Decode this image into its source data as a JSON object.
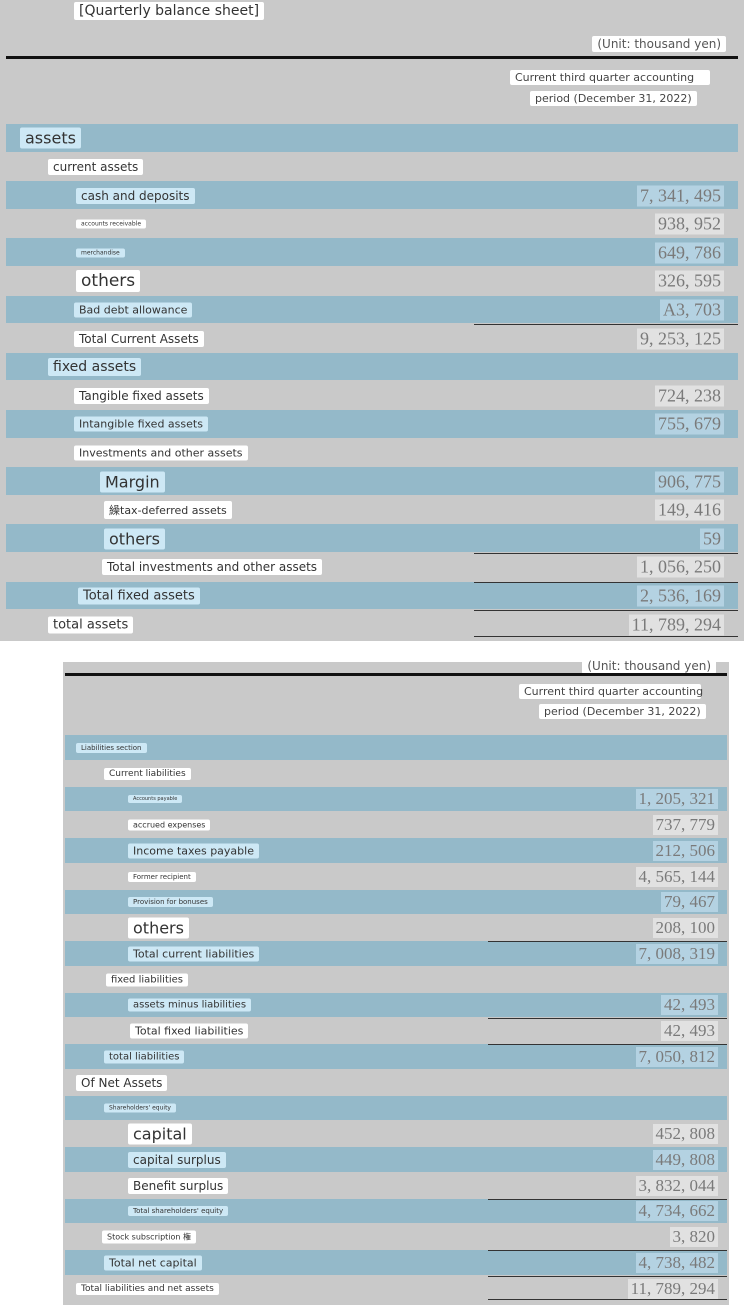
{
  "title": "[Quarterly balance sheet]",
  "sections": [
    {
      "unit": "(Unit: thousand yen)",
      "column_header": [
        "Current third quarter accounting",
        "period (December 31, 2022)"
      ],
      "rows": [
        {
          "label": "assets"
        },
        {
          "label": "current assets"
        },
        {
          "label": "cash and deposits",
          "value": "7, 341, 495"
        },
        {
          "label": "accounts receivable",
          "value": "938, 952"
        },
        {
          "label": "merchandise",
          "value": "649, 786"
        },
        {
          "label": "others",
          "value": "326, 595"
        },
        {
          "label": "Bad debt allowance",
          "value": "A3, 703"
        },
        {
          "label": "Total Current Assets",
          "value": "9, 253, 125"
        },
        {
          "label": "fixed assets"
        },
        {
          "label": "Tangible fixed assets",
          "value": "724, 238"
        },
        {
          "label": "Intangible fixed assets",
          "value": "755, 679"
        },
        {
          "label": "Investments and other assets"
        },
        {
          "label": "Margin",
          "value": "906, 775"
        },
        {
          "label": "繰tax-deferred assets",
          "value": "149, 416"
        },
        {
          "label": "others",
          "value": "59"
        },
        {
          "label": "Total investments and other assets",
          "value": "1, 056, 250"
        },
        {
          "label": "Total fixed assets",
          "value": "2, 536, 169"
        },
        {
          "label": "total assets",
          "value": "11, 789, 294"
        }
      ]
    },
    {
      "unit": "(Unit: thousand yen)",
      "column_header": [
        "Current third quarter accounting",
        "period (December 31, 2022)"
      ],
      "rows": [
        {
          "label": "Liabilities section"
        },
        {
          "label": "Current liabilities"
        },
        {
          "label": "Accounts payable",
          "value": "1, 205, 321"
        },
        {
          "label": "accrued expenses",
          "value": "737, 779"
        },
        {
          "label": "Income taxes payable",
          "value": "212, 506"
        },
        {
          "label": "Former recipient",
          "value": "4, 565, 144"
        },
        {
          "label": "Provision for bonuses",
          "value": "79, 467"
        },
        {
          "label": "others",
          "value": "208, 100"
        },
        {
          "label": "Total current liabilities",
          "value": "7, 008, 319"
        },
        {
          "label": "fixed liabilities"
        },
        {
          "label": "assets minus liabilities",
          "value": "42, 493"
        },
        {
          "label": "Total fixed liabilities",
          "value": "42, 493"
        },
        {
          "label": "total liabilities",
          "value": "7, 050, 812"
        },
        {
          "label": "Of Net Assets"
        },
        {
          "label": "Shareholders' equity"
        },
        {
          "label": "capital",
          "value": "452, 808"
        },
        {
          "label": "capital surplus",
          "value": "449, 808"
        },
        {
          "label": "Benefit surplus",
          "value": "3, 832, 044"
        },
        {
          "label": "Total shareholders' equity",
          "value": "4, 734, 662"
        },
        {
          "label": "Stock subscription 権",
          "value": "3, 820"
        },
        {
          "label": "Total net capital",
          "value": "4, 738, 482"
        },
        {
          "label": "Total liabilities and net assets",
          "value": "11, 789, 294"
        }
      ]
    }
  ]
}
